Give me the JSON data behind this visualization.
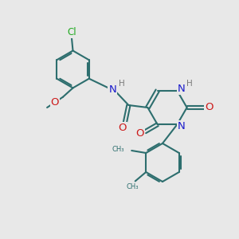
{
  "bg_color": "#e8e8e8",
  "bond_color": "#2d6e6e",
  "bond_width": 1.5,
  "atom_colors": {
    "C": "#2d6e6e",
    "N": "#1a1acc",
    "O": "#cc1a1a",
    "Cl": "#22aa22",
    "H": "#7a7a7a"
  },
  "font_size": 8.5
}
